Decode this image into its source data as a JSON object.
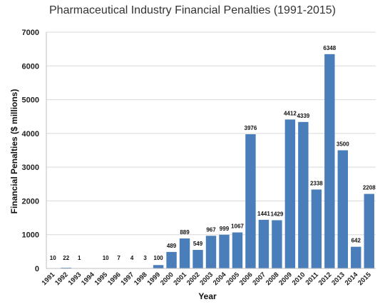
{
  "chart_data": {
    "type": "bar",
    "title": "Pharmaceutical Industry Financial Penalties (1991-2015)",
    "xlabel": "Year",
    "ylabel": "Financial Penalties ($ millions)",
    "categories": [
      "1991",
      "1992",
      "1993",
      "1994",
      "1995",
      "1996",
      "1997",
      "1998",
      "1999",
      "2000",
      "2001",
      "2002",
      "2003",
      "2004",
      "2005",
      "2006",
      "2007",
      "2008",
      "2009",
      "2010",
      "2011",
      "2012",
      "2013",
      "2014",
      "2015"
    ],
    "values": [
      10,
      22,
      1,
      0,
      10,
      7,
      4,
      3,
      100,
      489,
      889,
      549,
      967,
      999,
      1067,
      3976,
      1441,
      1429,
      4412,
      4339,
      2338,
      6348,
      3500,
      642,
      2208
    ],
    "data_labels": [
      "10",
      "22",
      "1",
      "",
      "10",
      "7",
      "4",
      "3",
      "100",
      "489",
      "889",
      "549",
      "967",
      "999",
      "1067",
      "3976",
      "1441",
      "1429",
      "4412",
      "4339",
      "2338",
      "6348",
      "3500",
      "642",
      "2208"
    ],
    "ylim": [
      0,
      7000
    ],
    "yticks": [
      0,
      1000,
      2000,
      3000,
      4000,
      5000,
      6000,
      7000
    ],
    "grid": true,
    "bar_color": "#4a7ebb"
  }
}
